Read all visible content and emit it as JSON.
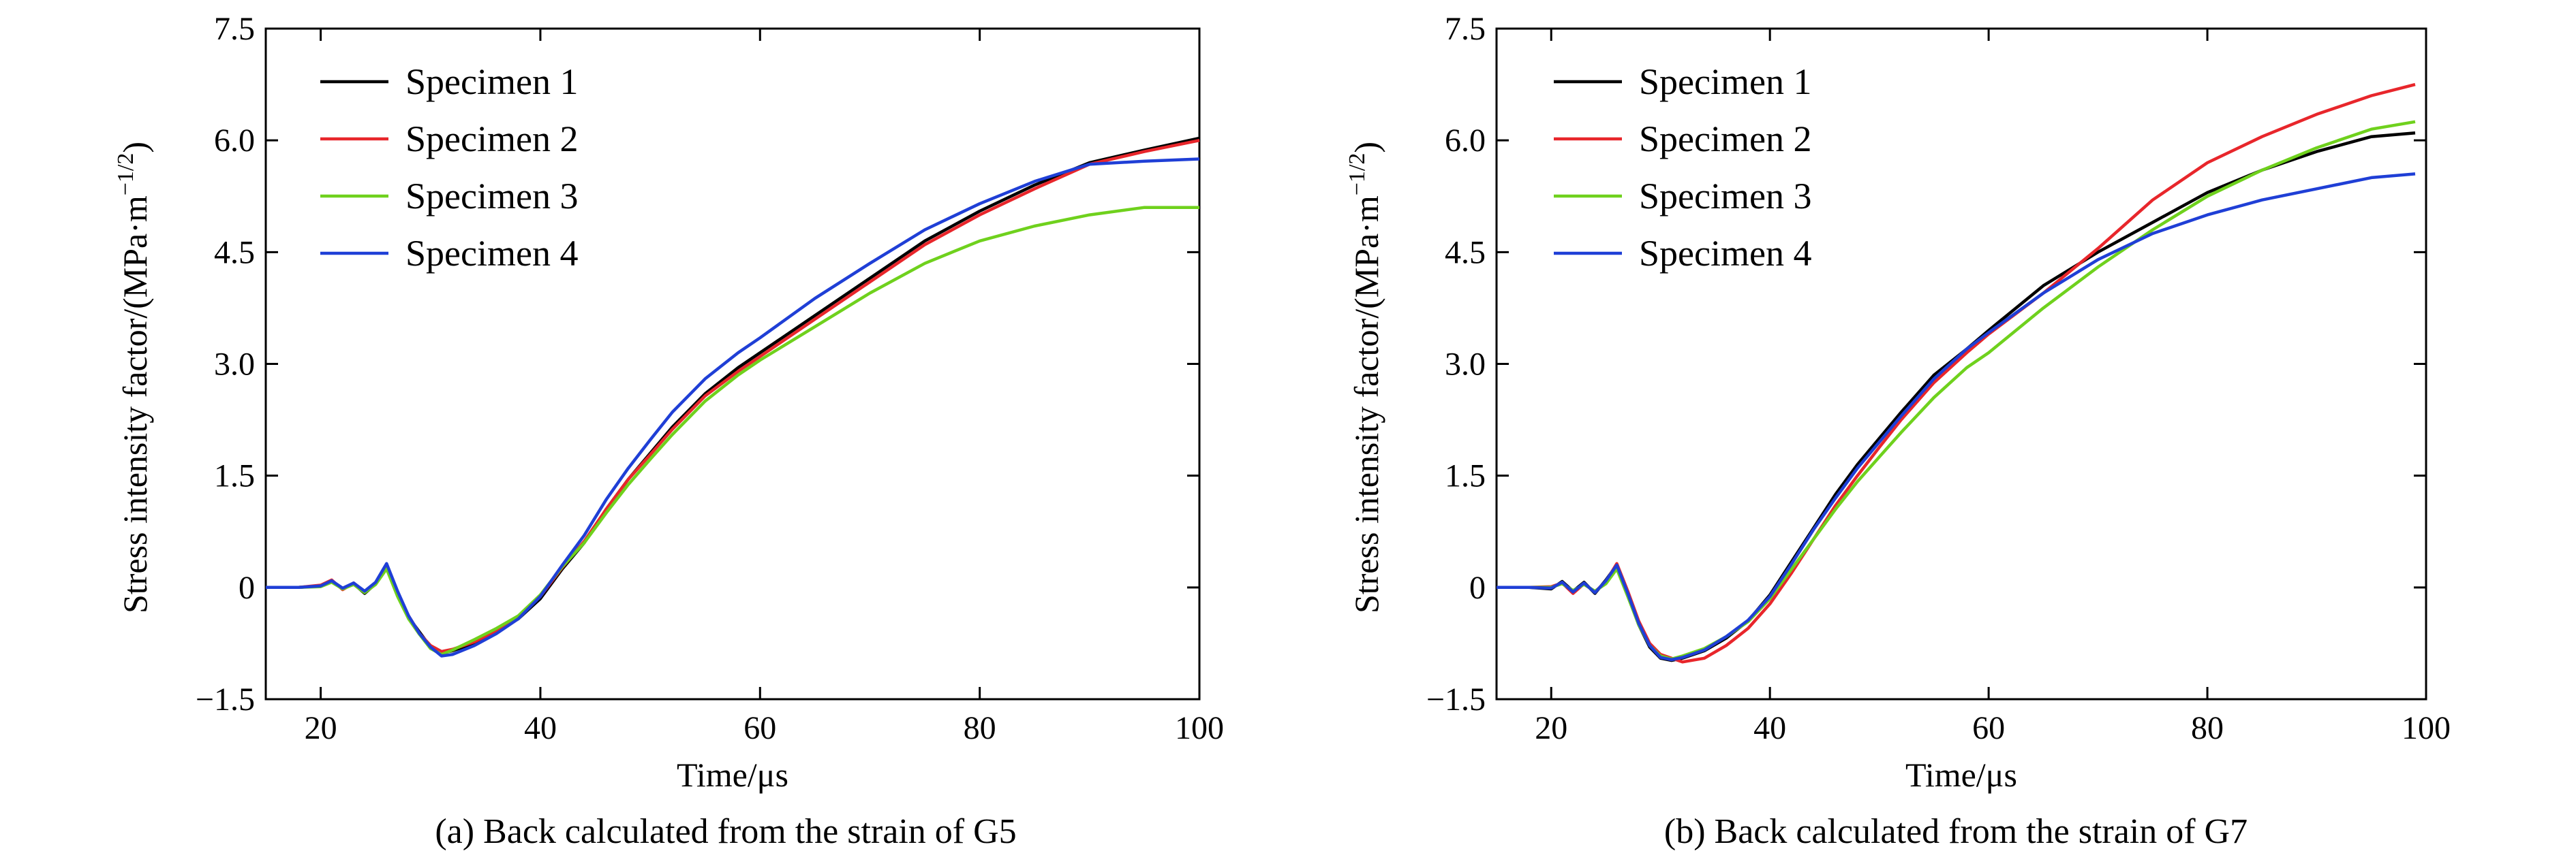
{
  "chart_data": [
    {
      "type": "line",
      "caption": "(a) Back calculated from the strain of G5",
      "xlabel": "Time/μs",
      "ylabel": "Stress intensity factor/(MPa·m",
      "ylabel_sup": "−1/2",
      "ylabel_close": ")",
      "xlim": [
        15,
        100
      ],
      "ylim": [
        -1.5,
        7.5
      ],
      "xticks": [
        20,
        40,
        60,
        80,
        100
      ],
      "xtick_labels": [
        "20",
        "40",
        "60",
        "80",
        "100"
      ],
      "yticks": [
        -1.5,
        0,
        1.5,
        3.0,
        4.5,
        6.0,
        7.5
      ],
      "ytick_labels": [
        "−1.5",
        "0",
        "1.5",
        "3.0",
        "4.5",
        "6.0",
        "7.5"
      ],
      "grid": false,
      "legend": "top-left",
      "series": [
        {
          "name": "Specimen 1",
          "color": "#000000",
          "x": [
            15,
            18,
            20,
            21,
            22,
            23,
            24,
            25,
            26,
            27,
            28,
            29,
            30,
            31,
            32,
            34,
            36,
            38,
            40,
            42,
            44,
            46,
            48,
            50,
            52,
            55,
            58,
            60,
            65,
            70,
            75,
            80,
            85,
            90,
            95,
            100
          ],
          "y": [
            0,
            0,
            0.02,
            0.08,
            -0.02,
            0.05,
            -0.08,
            0.05,
            0.28,
            -0.1,
            -0.4,
            -0.6,
            -0.8,
            -0.88,
            -0.85,
            -0.75,
            -0.6,
            -0.42,
            -0.15,
            0.25,
            0.6,
            1.05,
            1.45,
            1.8,
            2.15,
            2.6,
            2.95,
            3.15,
            3.65,
            4.15,
            4.65,
            5.05,
            5.4,
            5.7,
            5.87,
            6.03
          ]
        },
        {
          "name": "Specimen 2",
          "color": "#e8262b",
          "x": [
            15,
            18,
            20,
            21,
            22,
            23,
            24,
            25,
            26,
            27,
            28,
            29,
            30,
            31,
            32,
            34,
            36,
            38,
            40,
            42,
            44,
            46,
            48,
            50,
            52,
            55,
            58,
            60,
            65,
            70,
            75,
            80,
            85,
            90,
            95,
            100
          ],
          "y": [
            0,
            0,
            0.03,
            0.1,
            -0.03,
            0.06,
            -0.06,
            0.06,
            0.3,
            -0.08,
            -0.38,
            -0.62,
            -0.78,
            -0.86,
            -0.83,
            -0.73,
            -0.58,
            -0.4,
            -0.12,
            0.27,
            0.62,
            1.05,
            1.45,
            1.78,
            2.12,
            2.57,
            2.9,
            3.1,
            3.6,
            4.1,
            4.6,
            5.0,
            5.35,
            5.68,
            5.85,
            6.0
          ]
        },
        {
          "name": "Specimen 3",
          "color": "#6fd11d",
          "x": [
            15,
            18,
            20,
            21,
            22,
            23,
            24,
            25,
            26,
            27,
            28,
            29,
            30,
            31,
            32,
            34,
            36,
            38,
            40,
            42,
            44,
            46,
            48,
            50,
            52,
            55,
            58,
            60,
            65,
            70,
            75,
            80,
            85,
            90,
            95,
            100
          ],
          "y": [
            0,
            0,
            0.01,
            0.07,
            -0.02,
            0.04,
            -0.07,
            0.04,
            0.25,
            -0.12,
            -0.42,
            -0.63,
            -0.82,
            -0.9,
            -0.84,
            -0.7,
            -0.55,
            -0.38,
            -0.1,
            0.28,
            0.6,
            1.0,
            1.38,
            1.72,
            2.05,
            2.5,
            2.85,
            3.05,
            3.5,
            3.95,
            4.35,
            4.65,
            4.85,
            5.0,
            5.1,
            5.1
          ]
        },
        {
          "name": "Specimen 4",
          "color": "#1f3fd6",
          "x": [
            15,
            18,
            20,
            21,
            22,
            23,
            24,
            25,
            26,
            27,
            28,
            29,
            30,
            31,
            32,
            34,
            36,
            38,
            40,
            42,
            44,
            46,
            48,
            50,
            52,
            55,
            58,
            60,
            65,
            70,
            75,
            80,
            85,
            90,
            95,
            100
          ],
          "y": [
            0,
            0,
            0.02,
            0.09,
            -0.01,
            0.06,
            -0.05,
            0.07,
            0.32,
            -0.05,
            -0.38,
            -0.62,
            -0.8,
            -0.92,
            -0.9,
            -0.78,
            -0.62,
            -0.42,
            -0.12,
            0.3,
            0.7,
            1.18,
            1.6,
            1.98,
            2.35,
            2.8,
            3.15,
            3.35,
            3.88,
            4.35,
            4.8,
            5.15,
            5.45,
            5.68,
            5.72,
            5.75
          ]
        }
      ]
    },
    {
      "type": "line",
      "caption": "(b) Back calculated from the strain of G7",
      "xlabel": "Time/μs",
      "ylabel": "Stress intensity factor/(MPa·m",
      "ylabel_sup": "−1/2",
      "ylabel_close": ")",
      "xlim": [
        15,
        100
      ],
      "ylim": [
        -1.5,
        7.5
      ],
      "xticks": [
        20,
        40,
        60,
        80,
        100
      ],
      "xtick_labels": [
        "20",
        "40",
        "60",
        "80",
        "100"
      ],
      "yticks": [
        -1.5,
        0,
        1.5,
        3.0,
        4.5,
        6.0,
        7.5
      ],
      "ytick_labels": [
        "−1.5",
        "0",
        "1.5",
        "3.0",
        "4.5",
        "6.0",
        "7.5"
      ],
      "grid": false,
      "legend": "top-left",
      "series": [
        {
          "name": "Specimen 1",
          "color": "#000000",
          "x": [
            15,
            18,
            20,
            21,
            22,
            23,
            24,
            25,
            26,
            27,
            28,
            29,
            30,
            31,
            32,
            34,
            36,
            38,
            40,
            42,
            44,
            46,
            48,
            50,
            52,
            55,
            58,
            60,
            65,
            70,
            75,
            80,
            85,
            90,
            95,
            99
          ],
          "y": [
            0,
            0,
            -0.02,
            0.08,
            -0.05,
            0.07,
            -0.08,
            0.1,
            0.3,
            -0.1,
            -0.5,
            -0.8,
            -0.95,
            -0.98,
            -0.95,
            -0.85,
            -0.68,
            -0.45,
            -0.1,
            0.35,
            0.8,
            1.25,
            1.65,
            2.0,
            2.35,
            2.85,
            3.2,
            3.45,
            4.05,
            4.5,
            4.9,
            5.3,
            5.6,
            5.85,
            6.05,
            6.1
          ]
        },
        {
          "name": "Specimen 2",
          "color": "#e8262b",
          "x": [
            15,
            18,
            20,
            21,
            22,
            23,
            24,
            25,
            26,
            27,
            28,
            29,
            30,
            31,
            32,
            34,
            36,
            38,
            40,
            42,
            44,
            46,
            48,
            50,
            52,
            55,
            58,
            60,
            65,
            70,
            75,
            80,
            85,
            90,
            95,
            99
          ],
          "y": [
            0,
            0,
            0.01,
            0.06,
            -0.08,
            0.05,
            -0.06,
            0.08,
            0.32,
            -0.05,
            -0.45,
            -0.75,
            -0.9,
            -0.95,
            -1.0,
            -0.95,
            -0.78,
            -0.55,
            -0.22,
            0.2,
            0.65,
            1.1,
            1.5,
            1.88,
            2.25,
            2.75,
            3.15,
            3.4,
            3.95,
            4.55,
            5.2,
            5.7,
            6.05,
            6.35,
            6.6,
            6.75
          ]
        },
        {
          "name": "Specimen 3",
          "color": "#6fd11d",
          "x": [
            15,
            18,
            20,
            21,
            22,
            23,
            24,
            25,
            26,
            27,
            28,
            29,
            30,
            31,
            32,
            34,
            36,
            38,
            40,
            42,
            44,
            46,
            48,
            50,
            52,
            55,
            58,
            60,
            65,
            70,
            75,
            80,
            85,
            90,
            95,
            99
          ],
          "y": [
            0,
            0,
            0,
            0.05,
            -0.04,
            0.04,
            -0.05,
            0.05,
            0.25,
            -0.12,
            -0.5,
            -0.78,
            -0.92,
            -0.96,
            -0.92,
            -0.82,
            -0.66,
            -0.46,
            -0.15,
            0.25,
            0.65,
            1.05,
            1.42,
            1.75,
            2.08,
            2.55,
            2.95,
            3.15,
            3.75,
            4.3,
            4.8,
            5.25,
            5.6,
            5.9,
            6.15,
            6.25
          ]
        },
        {
          "name": "Specimen 4",
          "color": "#1f3fd6",
          "x": [
            15,
            18,
            20,
            21,
            22,
            23,
            24,
            25,
            26,
            27,
            28,
            29,
            30,
            31,
            32,
            34,
            36,
            38,
            40,
            42,
            44,
            46,
            48,
            50,
            52,
            55,
            58,
            60,
            65,
            70,
            75,
            80,
            85,
            90,
            95,
            99
          ],
          "y": [
            0,
            0,
            -0.01,
            0.07,
            -0.06,
            0.06,
            -0.07,
            0.09,
            0.3,
            -0.08,
            -0.48,
            -0.78,
            -0.94,
            -0.97,
            -0.94,
            -0.84,
            -0.66,
            -0.44,
            -0.12,
            0.32,
            0.78,
            1.2,
            1.6,
            1.95,
            2.3,
            2.8,
            3.2,
            3.42,
            3.95,
            4.4,
            4.75,
            5.0,
            5.2,
            5.35,
            5.5,
            5.55
          ]
        }
      ]
    }
  ]
}
